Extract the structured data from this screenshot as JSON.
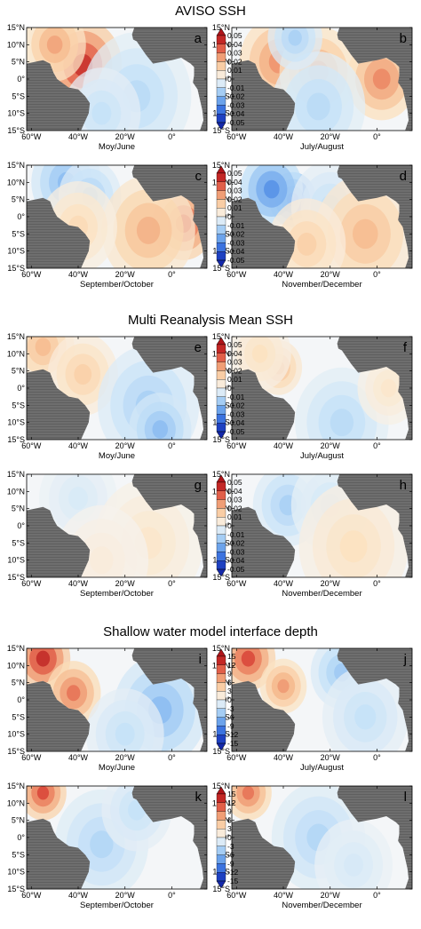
{
  "chart_data": {
    "type": "heatmap",
    "sections": [
      {
        "title": "AVISO SSH",
        "colorbar_ticks": [
          "0.05",
          "0.04",
          "0.03",
          "0.02",
          "0.01",
          "0",
          "-0.01",
          "-0.02",
          "-0.03",
          "-0.04",
          "-0.05"
        ],
        "colorbar_range": [
          -0.05,
          0.05
        ],
        "panels": [
          {
            "label": "a",
            "season": "Moy/June",
            "features": [
              {
                "lon": -38,
                "lat": 4,
                "value": 0.045,
                "r": 10
              },
              {
                "lon": -50,
                "lat": 10,
                "value": 0.025,
                "r": 8
              },
              {
                "lon": -15,
                "lat": -5,
                "value": -0.012,
                "r": 14
              },
              {
                "lon": -30,
                "lat": -10,
                "value": -0.01,
                "r": 10
              }
            ]
          },
          {
            "label": "b",
            "season": "July/August",
            "features": [
              {
                "lon": -42,
                "lat": 5,
                "value": 0.028,
                "r": 10
              },
              {
                "lon": -25,
                "lat": 2,
                "value": 0.025,
                "r": 10
              },
              {
                "lon": 2,
                "lat": 0,
                "value": 0.03,
                "r": 9
              },
              {
                "lon": -25,
                "lat": -8,
                "value": -0.012,
                "r": 12
              },
              {
                "lon": -35,
                "lat": 12,
                "value": -0.015,
                "r": 7
              }
            ]
          },
          {
            "label": "c",
            "season": "September/October",
            "features": [
              {
                "lon": -45,
                "lat": 10,
                "value": -0.02,
                "r": 9
              },
              {
                "lon": -35,
                "lat": 6,
                "value": -0.015,
                "r": 8
              },
              {
                "lon": 5,
                "lat": -2,
                "value": 0.04,
                "r": 8
              },
              {
                "lon": -10,
                "lat": -4,
                "value": 0.022,
                "r": 12
              },
              {
                "lon": -40,
                "lat": -3,
                "value": 0.012,
                "r": 10
              }
            ]
          },
          {
            "label": "d",
            "season": "November/December",
            "features": [
              {
                "lon": -36,
                "lat": 5,
                "value": -0.045,
                "r": 6
              },
              {
                "lon": -45,
                "lat": 8,
                "value": -0.03,
                "r": 8
              },
              {
                "lon": -20,
                "lat": 3,
                "value": -0.01,
                "r": 10
              },
              {
                "lon": -5,
                "lat": -5,
                "value": 0.02,
                "r": 13
              },
              {
                "lon": -30,
                "lat": -8,
                "value": 0.015,
                "r": 10
              }
            ]
          }
        ]
      },
      {
        "title": "Multi Reanalysis Mean SSH",
        "colorbar_ticks": [
          "0.05",
          "0.04",
          "0.03",
          "0.02",
          "0.01",
          "0",
          "-0.01",
          "-0.02",
          "-0.03",
          "-0.04",
          "-0.05"
        ],
        "colorbar_range": [
          -0.05,
          0.05
        ],
        "panels": [
          {
            "label": "e",
            "season": "Moy/June",
            "features": [
              {
                "lon": -55,
                "lat": 12,
                "value": 0.02,
                "r": 8
              },
              {
                "lon": -38,
                "lat": 4,
                "value": 0.015,
                "r": 9
              },
              {
                "lon": -10,
                "lat": -5,
                "value": -0.015,
                "r": 13
              },
              {
                "lon": -5,
                "lat": -12,
                "value": -0.02,
                "r": 8
              }
            ]
          },
          {
            "label": "f",
            "season": "July/August",
            "features": [
              {
                "lon": -42,
                "lat": 6,
                "value": 0.02,
                "r": 6
              },
              {
                "lon": -50,
                "lat": 10,
                "value": 0.01,
                "r": 8
              },
              {
                "lon": -15,
                "lat": -10,
                "value": -0.012,
                "r": 12
              },
              {
                "lon": 5,
                "lat": 0,
                "value": 0.008,
                "r": 8
              }
            ]
          },
          {
            "label": "g",
            "season": "September/October",
            "features": [
              {
                "lon": -40,
                "lat": 8,
                "value": -0.006,
                "r": 10
              },
              {
                "lon": -10,
                "lat": -5,
                "value": 0.008,
                "r": 14
              },
              {
                "lon": -30,
                "lat": -10,
                "value": 0.005,
                "r": 12
              }
            ]
          },
          {
            "label": "h",
            "season": "November/December",
            "features": [
              {
                "lon": -38,
                "lat": 6,
                "value": -0.015,
                "r": 9
              },
              {
                "lon": -20,
                "lat": 6,
                "value": -0.008,
                "r": 10
              },
              {
                "lon": -10,
                "lat": -6,
                "value": 0.01,
                "r": 14
              }
            ]
          }
        ]
      },
      {
        "title": "Shallow water model interface depth",
        "colorbar_ticks": [
          "15",
          "12",
          "9",
          "6",
          "3",
          "0",
          "-3",
          "-6",
          "-9",
          "-12",
          "-15"
        ],
        "colorbar_range": [
          -15,
          15
        ],
        "panels": [
          {
            "label": "i",
            "season": "Moy/June",
            "features": [
              {
                "lon": -55,
                "lat": 12,
                "value": 14,
                "r": 7
              },
              {
                "lon": -42,
                "lat": 2,
                "value": 10,
                "r": 7
              },
              {
                "lon": -5,
                "lat": -3,
                "value": -6,
                "r": 12
              },
              {
                "lon": -20,
                "lat": -10,
                "value": -3,
                "r": 10
              }
            ]
          },
          {
            "label": "j",
            "season": "July/August",
            "features": [
              {
                "lon": -55,
                "lat": 12,
                "value": 12,
                "r": 7
              },
              {
                "lon": -40,
                "lat": 4,
                "value": 8,
                "r": 6
              },
              {
                "lon": -15,
                "lat": 8,
                "value": -5,
                "r": 8
              },
              {
                "lon": -5,
                "lat": -5,
                "value": -3,
                "r": 11
              }
            ]
          },
          {
            "label": "k",
            "season": "September/October",
            "features": [
              {
                "lon": -55,
                "lat": 13,
                "value": 12,
                "r": 6
              },
              {
                "lon": -30,
                "lat": -2,
                "value": -4,
                "r": 12
              },
              {
                "lon": -15,
                "lat": 8,
                "value": -3,
                "r": 9
              }
            ]
          },
          {
            "label": "l",
            "season": "November/December",
            "features": [
              {
                "lon": -55,
                "lat": 13,
                "value": 10,
                "r": 6
              },
              {
                "lon": -25,
                "lat": 0,
                "value": -4,
                "r": 12
              },
              {
                "lon": -10,
                "lat": -8,
                "value": -2,
                "r": 10
              }
            ]
          }
        ]
      }
    ],
    "lat_ticks": [
      "15°N",
      "10°N",
      "5°N",
      "0°",
      "5°S",
      "10°S",
      "15°S"
    ],
    "lat_values": [
      15,
      10,
      5,
      0,
      -5,
      -10,
      -15
    ],
    "lon_ticks": [
      "60°W",
      "40°W",
      "20°W",
      "0°"
    ],
    "lon_values": [
      -60,
      -40,
      -20,
      0
    ],
    "lon_range": [
      -62,
      15
    ],
    "lat_range": [
      -15,
      15
    ]
  }
}
